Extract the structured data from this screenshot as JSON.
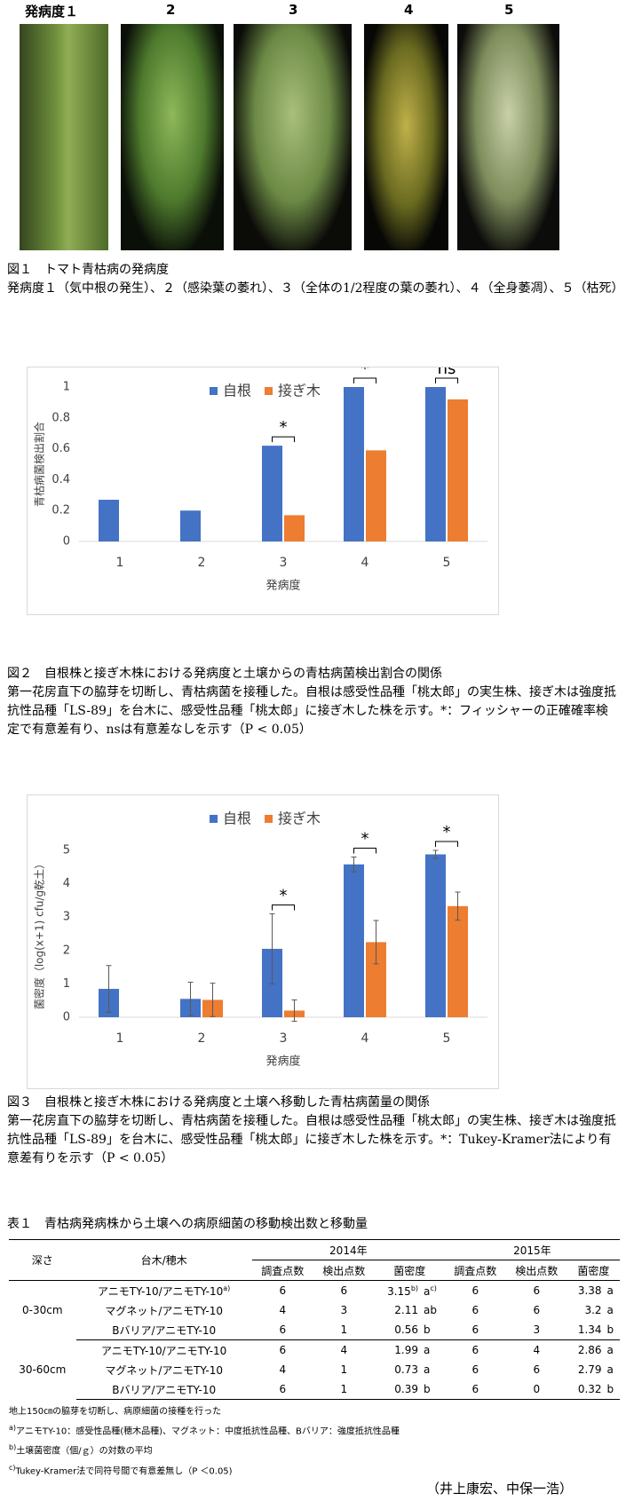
{
  "figure1": {
    "labels": [
      "発病度１",
      "2",
      "3",
      "4",
      "5"
    ],
    "caption_title": "図１　トマト青枯病の発病度",
    "caption_text": "発病度１（気中根の発生）、２（感染葉の萎れ）、３（全体の1/2程度の葉の萎れ）、４（全身萎凋）、５（枯死）"
  },
  "chart_data": [
    {
      "type": "bar",
      "categories": [
        "1",
        "2",
        "3",
        "4",
        "5"
      ],
      "series": [
        {
          "name": "自根",
          "color": "#4472c4",
          "values": [
            0.27,
            0.2,
            0.62,
            1,
            1
          ]
        },
        {
          "name": "接ぎ木",
          "color": "#ed7d31",
          "values": [
            null,
            null,
            0.17,
            0.59,
            0.92
          ]
        }
      ],
      "ylim": [
        0,
        1
      ],
      "yticks": [
        0,
        0.2,
        0.4,
        0.6,
        0.8,
        1
      ],
      "y_label": "青枯病菌検出割合",
      "x_label": "発病度",
      "annotations": [
        {
          "text": "*",
          "category": "3"
        },
        {
          "text": "*",
          "category": "4"
        },
        {
          "text": "ns",
          "category": "5"
        }
      ],
      "caption_title": "図２　自根株と接ぎ木株における発病度と土壌からの青枯病菌検出割合の関係",
      "caption_text": "第一花房直下の脇芽を切断し、青枯病菌を接種した。自根は感受性品種「桃太郎」の実生株、接ぎ木は強度抵抗性品種「LS-89」を台木に、感受性品種「桃太郎」に接ぎ木した株を示す。*：フィッシャーの正確確率検定で有意差有り、nsは有意差なしを示す（P < 0.05）"
    },
    {
      "type": "bar",
      "categories": [
        "1",
        "2",
        "3",
        "4",
        "5"
      ],
      "series": [
        {
          "name": "自根",
          "color": "#4472c4",
          "values": [
            0.85,
            0.55,
            2.05,
            4.58,
            4.88
          ],
          "errors": [
            0.7,
            0.5,
            1.05,
            0.22,
            0.12
          ]
        },
        {
          "name": "接ぎ木",
          "color": "#ed7d31",
          "values": [
            null,
            0.52,
            0.2,
            2.25,
            3.33
          ],
          "errors": [
            null,
            0.5,
            0.32,
            0.65,
            0.42
          ]
        }
      ],
      "ylim": [
        0,
        5
      ],
      "yticks": [
        0,
        1,
        2,
        3,
        4,
        5
      ],
      "y_label": "菌密度（log(x+1) cfu/g乾土）",
      "x_label": "発病度",
      "annotations": [
        {
          "text": "*",
          "category": "3"
        },
        {
          "text": "*",
          "category": "4"
        },
        {
          "text": "*",
          "category": "5"
        }
      ],
      "caption_title": "図３　自根株と接ぎ木株における発病度と土壌へ移動した青枯病菌量の関係",
      "caption_text": "第一花房直下の脇芽を切断し、青枯病菌を接種した。自根は感受性品種「桃太郎」の実生株、接ぎ木は強度抵抗性品種「LS-89」を台木に、感受性品種「桃太郎」に接ぎ木した株を示す。*：Tukey-Kramer法により有意差有りを示す（P < 0.05）"
    }
  ],
  "table": {
    "title": "表１　青枯病発病株から土壌への病原細菌の移動検出数と移動量",
    "header": {
      "depth": "深さ",
      "stock": "台木/穂木",
      "years": [
        "2014年",
        "2015年"
      ],
      "cols": [
        "調査点数",
        "検出点数",
        "菌密度"
      ]
    },
    "groups": [
      {
        "depth": "0-30cm",
        "rows": [
          {
            "stock": "アニモTY-10/アニモTY-10",
            "stock_mark": "a)",
            "y2014": {
              "surveyed": 6,
              "detected": 6,
              "density": 3.15,
              "density_mark": "b)",
              "letter": "a",
              "letter_mark": "c)"
            },
            "y2015": {
              "surveyed": 6,
              "detected": 6,
              "density": 3.38,
              "letter": "a"
            }
          },
          {
            "stock": "マグネット/アニモTY-10",
            "y2014": {
              "surveyed": 4,
              "detected": 3,
              "density": 2.11,
              "letter": "ab"
            },
            "y2015": {
              "surveyed": 6,
              "detected": 6,
              "density": 3.2,
              "letter": "a"
            }
          },
          {
            "stock": "Bバリア/アニモTY-10",
            "y2014": {
              "surveyed": 6,
              "detected": 1,
              "density": 0.56,
              "letter": "b"
            },
            "y2015": {
              "surveyed": 6,
              "detected": 3,
              "density": 1.34,
              "letter": "b"
            }
          }
        ]
      },
      {
        "depth": "30-60cm",
        "rows": [
          {
            "stock": "アニモTY-10/アニモTY-10",
            "y2014": {
              "surveyed": 6,
              "detected": 4,
              "density": 1.99,
              "letter": "a"
            },
            "y2015": {
              "surveyed": 6,
              "detected": 4,
              "density": 2.86,
              "letter": "a"
            }
          },
          {
            "stock": "マグネット/アニモTY-10",
            "y2014": {
              "surveyed": 4,
              "detected": 1,
              "density": 0.73,
              "letter": "a"
            },
            "y2015": {
              "surveyed": 6,
              "detected": 6,
              "density": 2.79,
              "letter": "a"
            }
          },
          {
            "stock": "Bバリア/アニモTY-10",
            "y2014": {
              "surveyed": 6,
              "detected": 1,
              "density": 0.39,
              "letter": "b"
            },
            "y2015": {
              "surveyed": 6,
              "detected": 0,
              "density": 0.32,
              "letter": "b"
            }
          }
        ]
      }
    ],
    "notes": [
      {
        "text": "地上150㎝の脇芽を切断し、病原細菌の接種を行った"
      },
      {
        "mark": "a)",
        "text": "アニモTY-10：感受性品種(穂木品種)、マグネット：中度抵抗性品種、Bバリア：強度抵抗性品種"
      },
      {
        "mark": "b)",
        "text": "土壌菌密度（個/ｇ）の対数の平均"
      },
      {
        "mark": "c)",
        "text": "Tukey-Kramer法で同符号間で有意差無し（P ＜0.05)"
      }
    ]
  },
  "author": "（井上康宏、中保一浩）"
}
